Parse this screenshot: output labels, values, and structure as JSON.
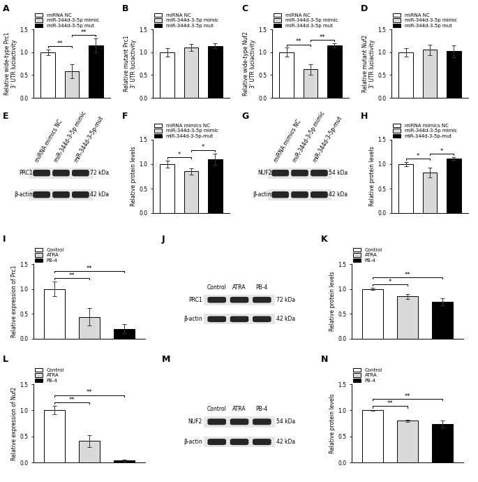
{
  "chart_data": [
    {
      "panel": "A",
      "type": "bar",
      "y_label": "Relative wide-type Prc1\n3' UTR luciactivity",
      "ylim": [
        0,
        1.5
      ],
      "yticks": [
        {
          "value": 0,
          "label": "0.0"
        },
        {
          "value": 0.5,
          "label": "0.5"
        },
        {
          "value": 1.0,
          "label": "1.0"
        },
        {
          "value": 1.5,
          "label": "1.5"
        }
      ],
      "tick_labels": "y",
      "series": [
        {
          "name": "miRNA NC",
          "color": "#ffffff",
          "values": [
            1.0
          ],
          "errors": [
            0.06
          ]
        },
        {
          "name": "miR-344d-3-5p mimic",
          "color": "#d9d9d9",
          "values": [
            0.58
          ],
          "errors": [
            0.15
          ]
        },
        {
          "name": "miR-344d-3-5p mut",
          "color": "#000000",
          "values": [
            1.15
          ],
          "errors": [
            0.15
          ]
        }
      ],
      "significance": [
        {
          "between": [
            0,
            1
          ],
          "label": "**"
        },
        {
          "between": [
            1,
            2
          ],
          "label": "**"
        }
      ]
    },
    {
      "panel": "B",
      "type": "bar",
      "y_label": "Relative mutant Prc1\n3' UTR luciactivity",
      "ylim": [
        0,
        1.5
      ],
      "yticks": [
        {
          "value": 0,
          "label": "0.0"
        },
        {
          "value": 0.5,
          "label": "0.5"
        },
        {
          "value": 1.0,
          "label": "1.0"
        },
        {
          "value": 1.5,
          "label": "1.5"
        }
      ],
      "tick_labels": "y",
      "series": [
        {
          "name": "miRNA NC",
          "color": "#ffffff",
          "values": [
            1.0
          ],
          "errors": [
            0.09
          ]
        },
        {
          "name": "miR-344d-3-5p mimic",
          "color": "#d9d9d9",
          "values": [
            1.1
          ],
          "errors": [
            0.08
          ]
        },
        {
          "name": "miR-344d-3-5p mut",
          "color": "#000000",
          "values": [
            1.14
          ],
          "errors": [
            0.05
          ]
        }
      ],
      "significance": []
    },
    {
      "panel": "C",
      "type": "bar",
      "y_label": "Relative wide-type Nuf2\n3' UTR luciactivity",
      "ylim": [
        0,
        1.5
      ],
      "yticks": [
        {
          "value": 0,
          "label": "0.0"
        },
        {
          "value": 0.5,
          "label": "0.5"
        },
        {
          "value": 1.0,
          "label": "1.0"
        },
        {
          "value": 1.5,
          "label": "1.5"
        }
      ],
      "tick_labels": "y",
      "series": [
        {
          "name": "miRNA NC",
          "color": "#ffffff",
          "values": [
            1.0
          ],
          "errors": [
            0.1
          ]
        },
        {
          "name": "miR-344d-3-5p mimic",
          "color": "#d9d9d9",
          "values": [
            0.62
          ],
          "errors": [
            0.11
          ]
        },
        {
          "name": "miR-344d-3-5p mut",
          "color": "#000000",
          "values": [
            1.15
          ],
          "errors": [
            0.05
          ]
        }
      ],
      "significance": [
        {
          "between": [
            0,
            1
          ],
          "label": "**"
        },
        {
          "between": [
            1,
            2
          ],
          "label": "**"
        }
      ]
    },
    {
      "panel": "D",
      "type": "bar",
      "y_label": "Relative mutant Nuf2\n3' UTR luciactivity",
      "ylim": [
        0,
        1.5
      ],
      "yticks": [
        {
          "value": 0,
          "label": "0.0"
        },
        {
          "value": 0.5,
          "label": "0.5"
        },
        {
          "value": 1.0,
          "label": "1.0"
        },
        {
          "value": 1.5,
          "label": "1.5"
        }
      ],
      "tick_labels": "y",
      "series": [
        {
          "name": "miRNA NC",
          "color": "#ffffff",
          "values": [
            1.0
          ],
          "errors": [
            0.09
          ]
        },
        {
          "name": "miR-344d-3-5p mimic",
          "color": "#d9d9d9",
          "values": [
            1.05
          ],
          "errors": [
            0.12
          ]
        },
        {
          "name": "miR-344d-3-5p mut",
          "color": "#000000",
          "values": [
            1.02
          ],
          "errors": [
            0.13
          ]
        }
      ],
      "significance": []
    },
    {
      "panel": "E",
      "type": "blot",
      "lanes": [
        "miRNA mimics NC",
        "miR-344d-3-5p mimic",
        "miR-344d-3-5p-mut"
      ],
      "bands": [
        {
          "name": "PRC1",
          "size": "72 kDa"
        },
        {
          "name": "β-actin",
          "size": "42 kDa"
        }
      ]
    },
    {
      "panel": "F",
      "type": "bar",
      "y_label": "Relative protein levels",
      "ylim": [
        0,
        1.5
      ],
      "yticks": [
        {
          "value": 0,
          "label": "0.0"
        },
        {
          "value": 0.5,
          "label": "0.5"
        },
        {
          "value": 1.0,
          "label": "1.0"
        },
        {
          "value": 1.5,
          "label": "1.5"
        }
      ],
      "tick_labels": "y",
      "series": [
        {
          "name": "miRNA mimics NC",
          "color": "#ffffff",
          "values": [
            1.0
          ],
          "errors": [
            0.07
          ]
        },
        {
          "name": "miR-344d-3-5p mimic",
          "color": "#d9d9d9",
          "values": [
            0.85
          ],
          "errors": [
            0.07
          ]
        },
        {
          "name": "miR-344d-3-5p-mut",
          "color": "#000000",
          "values": [
            1.1
          ],
          "errors": [
            0.12
          ]
        }
      ],
      "significance": [
        {
          "between": [
            0,
            1
          ],
          "label": "*"
        },
        {
          "between": [
            1,
            2
          ],
          "label": "*"
        }
      ]
    },
    {
      "panel": "G",
      "type": "blot",
      "lanes": [
        "miRNA mimics NC",
        "miR-344d-3-5p mimic",
        "miR-344d-3-5p-mut"
      ],
      "bands": [
        {
          "name": "NUF2",
          "size": "54 kDa"
        },
        {
          "name": "β-actin",
          "size": "42 kDa"
        }
      ]
    },
    {
      "panel": "H",
      "type": "bar",
      "y_label": "Relative protein levels",
      "ylim": [
        0,
        1.5
      ],
      "yticks": [
        {
          "value": 0,
          "label": "0.0"
        },
        {
          "value": 0.5,
          "label": "0.5"
        },
        {
          "value": 1.0,
          "label": "1.0"
        },
        {
          "value": 1.5,
          "label": "1.5"
        }
      ],
      "tick_labels": "y",
      "series": [
        {
          "name": "miRNA mimics NC",
          "color": "#ffffff",
          "values": [
            1.0
          ],
          "errors": [
            0.04
          ]
        },
        {
          "name": "miR-344d-3-5p mimic",
          "color": "#d9d9d9",
          "values": [
            0.83
          ],
          "errors": [
            0.1
          ]
        },
        {
          "name": "miR-344d-3-5p-mut",
          "color": "#000000",
          "values": [
            1.11
          ],
          "errors": [
            0.03
          ]
        }
      ],
      "significance": [
        {
          "between": [
            0,
            1
          ],
          "label": "*"
        },
        {
          "between": [
            1,
            2
          ],
          "label": "*"
        }
      ]
    },
    {
      "panel": "I",
      "type": "bar",
      "y_label": "Relative expression of Prc1",
      "ylim": [
        0,
        1.5
      ],
      "yticks": [
        {
          "value": 0,
          "label": "0.0"
        },
        {
          "value": 0.5,
          "label": "0.5"
        },
        {
          "value": 1.0,
          "label": "1.0"
        },
        {
          "value": 1.5,
          "label": "1.5"
        }
      ],
      "tick_labels": "y",
      "series": [
        {
          "name": "Control",
          "color": "#ffffff",
          "values": [
            1.0
          ],
          "errors": [
            0.15
          ]
        },
        {
          "name": "ATRA",
          "color": "#d9d9d9",
          "values": [
            0.44
          ],
          "errors": [
            0.17
          ]
        },
        {
          "name": "PB-4",
          "color": "#000000",
          "values": [
            0.2
          ],
          "errors": [
            0.09
          ]
        }
      ],
      "significance": [
        {
          "between": [
            0,
            1
          ],
          "label": "**"
        },
        {
          "between": [
            0,
            2
          ],
          "label": "**"
        }
      ]
    },
    {
      "panel": "J",
      "type": "blot",
      "lanes": [
        "Control",
        "ATRA",
        "PB-4"
      ],
      "bands": [
        {
          "name": "PRC1",
          "size": "72 kDa"
        },
        {
          "name": "β-actin",
          "size": "42 kDa"
        }
      ]
    },
    {
      "panel": "K",
      "type": "bar",
      "y_label": "Relative protein levels",
      "ylim": [
        0,
        1.5
      ],
      "yticks": [
        {
          "value": 0,
          "label": "0.0"
        },
        {
          "value": 0.5,
          "label": "0.5"
        },
        {
          "value": 1.0,
          "label": "1.0"
        },
        {
          "value": 1.5,
          "label": "1.5"
        }
      ],
      "tick_labels": "y",
      "series": [
        {
          "name": "Control",
          "color": "#ffffff",
          "values": [
            1.0
          ],
          "errors": [
            0.02
          ]
        },
        {
          "name": "ATRA",
          "color": "#d9d9d9",
          "values": [
            0.85
          ],
          "errors": [
            0.05
          ]
        },
        {
          "name": "PB-4",
          "color": "#000000",
          "values": [
            0.74
          ],
          "errors": [
            0.07
          ]
        }
      ],
      "significance": [
        {
          "between": [
            0,
            1
          ],
          "label": "*"
        },
        {
          "between": [
            0,
            2
          ],
          "label": "**"
        }
      ]
    },
    {
      "panel": "L",
      "type": "bar",
      "y_label": "Relative expression of Nuf2",
      "ylim": [
        0,
        1.5
      ],
      "yticks": [
        {
          "value": 0,
          "label": "0.0"
        },
        {
          "value": 0.5,
          "label": "0.5"
        },
        {
          "value": 1.0,
          "label": "1.0"
        },
        {
          "value": 1.5,
          "label": "1.5"
        }
      ],
      "tick_labels": "y",
      "series": [
        {
          "name": "Control",
          "color": "#ffffff",
          "values": [
            1.0
          ],
          "errors": [
            0.08
          ]
        },
        {
          "name": "ATRA",
          "color": "#d9d9d9",
          "values": [
            0.41
          ],
          "errors": [
            0.11
          ]
        },
        {
          "name": "PB-4",
          "color": "#000000",
          "values": [
            0.04
          ],
          "errors": [
            0.02
          ]
        }
      ],
      "significance": [
        {
          "between": [
            0,
            1
          ],
          "label": "**"
        },
        {
          "between": [
            0,
            2
          ],
          "label": "**"
        }
      ]
    },
    {
      "panel": "M",
      "type": "blot",
      "lanes": [
        "Control",
        "ATRA",
        "PB-4"
      ],
      "bands": [
        {
          "name": "NUF2",
          "size": "54 kDa"
        },
        {
          "name": "β-actin",
          "size": "42 kDa"
        }
      ]
    },
    {
      "panel": "N",
      "type": "bar",
      "y_label": "Relative protein levels",
      "ylim": [
        0,
        1.5
      ],
      "yticks": [
        {
          "value": 0,
          "label": "0.0"
        },
        {
          "value": 0.5,
          "label": "0.5"
        },
        {
          "value": 1.0,
          "label": "1.0"
        },
        {
          "value": 1.5,
          "label": "1.5"
        }
      ],
      "tick_labels": "y",
      "series": [
        {
          "name": "Control",
          "color": "#ffffff",
          "values": [
            1.0
          ],
          "errors": [
            0.01
          ]
        },
        {
          "name": "ATRA",
          "color": "#d9d9d9",
          "values": [
            0.8
          ],
          "errors": [
            0.02
          ]
        },
        {
          "name": "PB-4",
          "color": "#000000",
          "values": [
            0.74
          ],
          "errors": [
            0.07
          ]
        }
      ],
      "significance": [
        {
          "between": [
            0,
            1
          ],
          "label": "**"
        },
        {
          "between": [
            0,
            2
          ],
          "label": "**"
        }
      ]
    }
  ]
}
